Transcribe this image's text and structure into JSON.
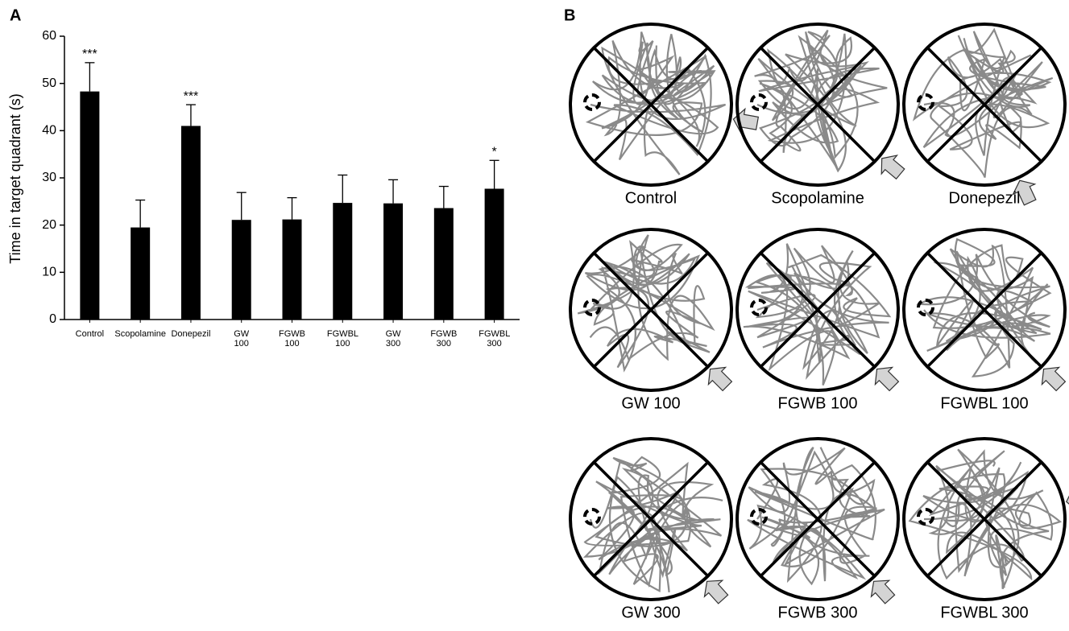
{
  "chart_data": {
    "type": "bar",
    "panel_label": "A",
    "y_label": "Time in target quadrant (s)",
    "categories": [
      "Control",
      "Scopolamine",
      "Donepezil",
      "GW 100",
      "FGWB 100",
      "FGWBL 100",
      "GW 300",
      "FGWB 300",
      "FGWBL 300"
    ],
    "values": [
      48.3,
      19.5,
      41,
      21.1,
      21.2,
      24.7,
      24.6,
      23.6,
      27.7
    ],
    "errors": [
      6.1,
      5.8,
      4.5,
      5.8,
      4.6,
      5.9,
      5,
      4.6,
      6
    ],
    "significance": [
      "***",
      null,
      "***",
      null,
      null,
      null,
      null,
      null,
      "*"
    ],
    "color": "#000000",
    "ylim": [
      0,
      60
    ],
    "yticks": [
      0,
      10,
      20,
      30,
      40,
      50,
      60
    ],
    "grid": false
  },
  "panel_b": {
    "panel_label": "B",
    "captions": [
      "Control",
      "Scopolamine",
      "Donepezil",
      "GW 100",
      "FGWB 100",
      "FGWBL 100",
      "GW 300",
      "FGWB 300",
      "FGWBL 300"
    ]
  }
}
